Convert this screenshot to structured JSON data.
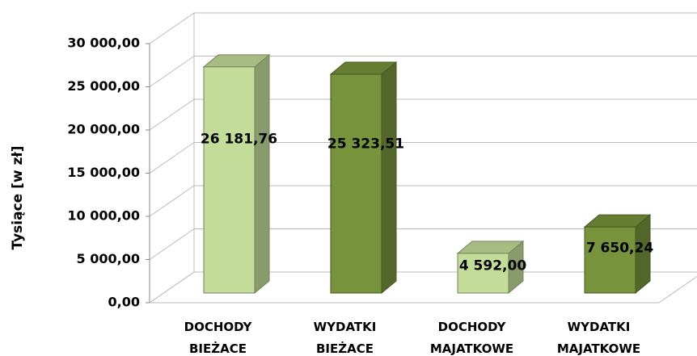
{
  "chart_data": {
    "type": "bar3d",
    "y_label": "Tysiące [w zł]",
    "categories": [
      "DOCHODY BIEŻACE",
      "WYDATKI BIEŻACE",
      "DOCHODY MAJATKOWE",
      "WYDATKI MAJATKOWE"
    ],
    "values": [
      26181.76,
      25323.51,
      4592.0,
      7650.24
    ],
    "value_labels": [
      "26 181,76",
      "25 323,51",
      "4 592,00",
      "7 650,24"
    ],
    "colors": [
      "#c4dc9a",
      "#77933c",
      "#c4dc9a",
      "#77933c"
    ],
    "ylim": [
      0,
      30000
    ],
    "yticks": [
      {
        "value": 0,
        "label": "0,00"
      },
      {
        "value": 5000,
        "label": "5 000,00"
      },
      {
        "value": 10000,
        "label": "10 000,00"
      },
      {
        "value": 15000,
        "label": "15 000,00"
      },
      {
        "value": 20000,
        "label": "20 000,00"
      },
      {
        "value": 25000,
        "label": "25 000,00"
      },
      {
        "value": 30000,
        "label": "30 000,00"
      }
    ],
    "grid": true
  }
}
